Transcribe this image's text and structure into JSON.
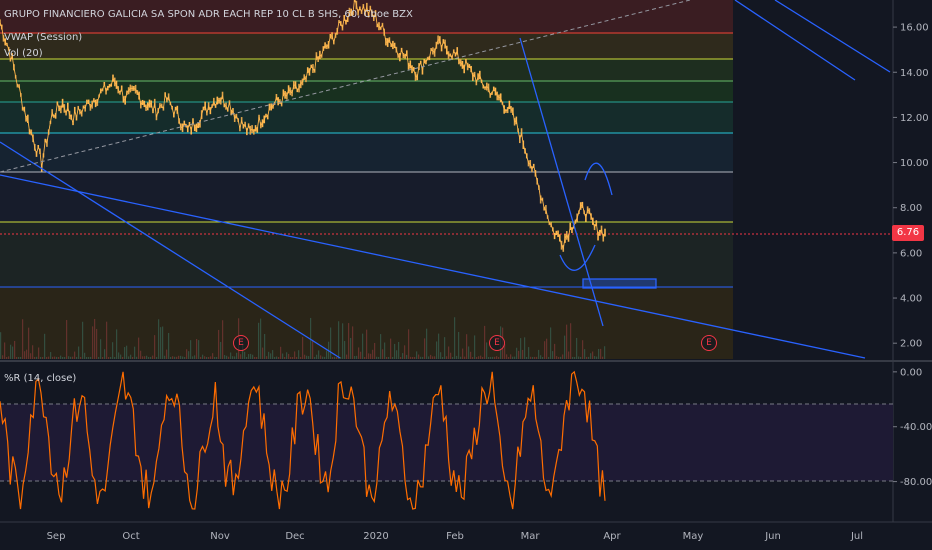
{
  "legend": {
    "title": "GRUPO FINANCIERO GALICIA SA SPON ADR EACH REP 10 CL B SHS, 60, Cboe BZX",
    "vwap": "VWAP (Session)",
    "vol": "Vol (20)",
    "wr": "%R (14, close)"
  },
  "current_price": "6.76",
  "earnings_label": "E",
  "colors": {
    "background": "#131722",
    "candle_up": "#ffb74d",
    "candle_down": "#e0a44a",
    "wr_line": "#ff6d00",
    "trend_line": "#2962ff",
    "price_badge": "#f23645"
  },
  "chart_data": [
    {
      "type": "line",
      "title": "GRUPO FINANCIERO GALICIA SA SPON ADR EACH REP 10 CL B SHS, 60, Cboe BZX",
      "x_ticks": [
        "Sep",
        "Oct",
        "Nov",
        "Dec",
        "2020",
        "Feb",
        "Mar",
        "Apr",
        "May",
        "Jun",
        "Jul"
      ],
      "y_ticks": [
        "16.00",
        "14.00",
        "12.00",
        "10.00",
        "8.00",
        "6.00",
        "4.00",
        "2.00"
      ],
      "ylim": [
        1.3,
        17.2
      ],
      "last_price": 6.76,
      "series": [
        {
          "values": [
            16.2,
            14.8,
            12.9,
            11.3,
            10.0,
            12.1,
            12.6,
            12.0,
            12.4,
            12.8,
            13.2,
            13.6,
            12.9,
            13.1,
            12.6,
            12.3,
            12.8,
            12.1,
            11.4,
            11.9,
            12.5,
            12.9,
            12.6,
            11.8,
            11.3,
            11.9,
            12.5,
            12.8,
            13.1,
            13.4,
            14.2,
            14.9,
            15.6,
            16.3,
            17.0,
            16.8,
            16.4,
            15.6,
            15.1,
            14.6,
            14.0,
            14.7,
            15.2,
            15.0,
            14.6,
            14.1,
            13.6,
            13.2,
            12.8,
            12.2,
            11.1,
            9.8,
            8.4,
            7.0,
            6.5,
            7.4,
            8.0,
            7.1,
            6.9
          ]
        }
      ],
      "grid": false,
      "annotations": [
        "VWAP (Session)",
        "Vol (20)",
        "E",
        "E",
        "E"
      ]
    },
    {
      "type": "line",
      "title": "%R (14, close)",
      "y_ticks": [
        "0.00",
        "-40.00",
        "-80.00"
      ],
      "ylim": [
        -108,
        5
      ],
      "reference_levels": [
        -20,
        -80
      ],
      "series": [
        {
          "values": [
            -18,
            -70,
            -92,
            -30,
            -5,
            -60,
            -88,
            -40,
            -12,
            -75,
            -95,
            -50,
            -8,
            -35,
            -82,
            -90,
            -20,
            -10,
            -65,
            -98,
            -45,
            -15,
            -70,
            -88,
            -25,
            -5,
            -55,
            -92,
            -80,
            -30,
            -10,
            -60,
            -85,
            -20,
            -5,
            -40,
            -90,
            -70,
            -15,
            -50,
            -95,
            -85,
            -35,
            -10,
            -70,
            -92,
            -60,
            -20,
            -5,
            -80,
            -96,
            -40,
            -15,
            -75,
            -90,
            -30,
            -2,
            -10,
            -60,
            -94
          ]
        }
      ]
    }
  ]
}
